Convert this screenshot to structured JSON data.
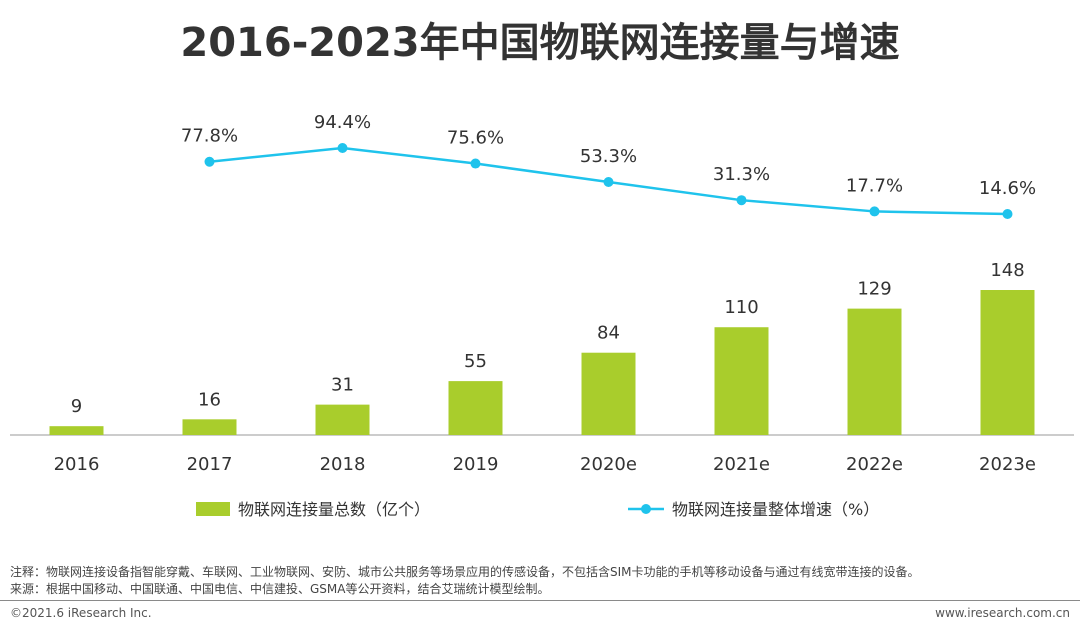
{
  "title": "2016-2023年中国物联网连接量与增速",
  "chart_data": {
    "type": "bar+line",
    "title": "2016-2023年中国物联网连接量与增速",
    "categories": [
      "2016",
      "2017",
      "2018",
      "2019",
      "2020e",
      "2021e",
      "2022e",
      "2023e"
    ],
    "series": [
      {
        "name": "物联网连接量总数（亿个）",
        "type": "bar",
        "values": [
          9,
          16,
          31,
          55,
          84,
          110,
          129,
          148
        ],
        "labels": [
          "9",
          "16",
          "31",
          "55",
          "84",
          "110",
          "129",
          "148"
        ],
        "color": "#a9cd2c"
      },
      {
        "name": "物联网连接量整体增速（%）",
        "type": "line",
        "values": [
          null,
          77.8,
          94.4,
          75.6,
          53.3,
          31.3,
          17.7,
          14.6
        ],
        "labels": [
          "",
          "77.8%",
          "94.4%",
          "75.6%",
          "53.3%",
          "31.3%",
          "17.7%",
          "14.6%"
        ],
        "color": "#1fc3ec"
      }
    ],
    "xlabel": "",
    "ylabel": "",
    "ylim_bars": [
      0,
      148
    ],
    "ylim_line": [
      14.6,
      94.4
    ],
    "legend_position": "bottom",
    "grid": false
  },
  "notes": {
    "note": "注释：物联网连接设备指智能穿戴、车联网、工业物联网、安防、城市公共服务等场景应用的传感设备，不包括含SIM卡功能的手机等移动设备与通过有线宽带连接的设备。",
    "source": "来源：根据中国移动、中国联通、中国电信、中信建投、GSMA等公开资料，结合艾瑞统计模型绘制。"
  },
  "footer": {
    "copyright": "©2021.6 iResearch Inc.",
    "website": "www.iresearch.com.cn"
  }
}
